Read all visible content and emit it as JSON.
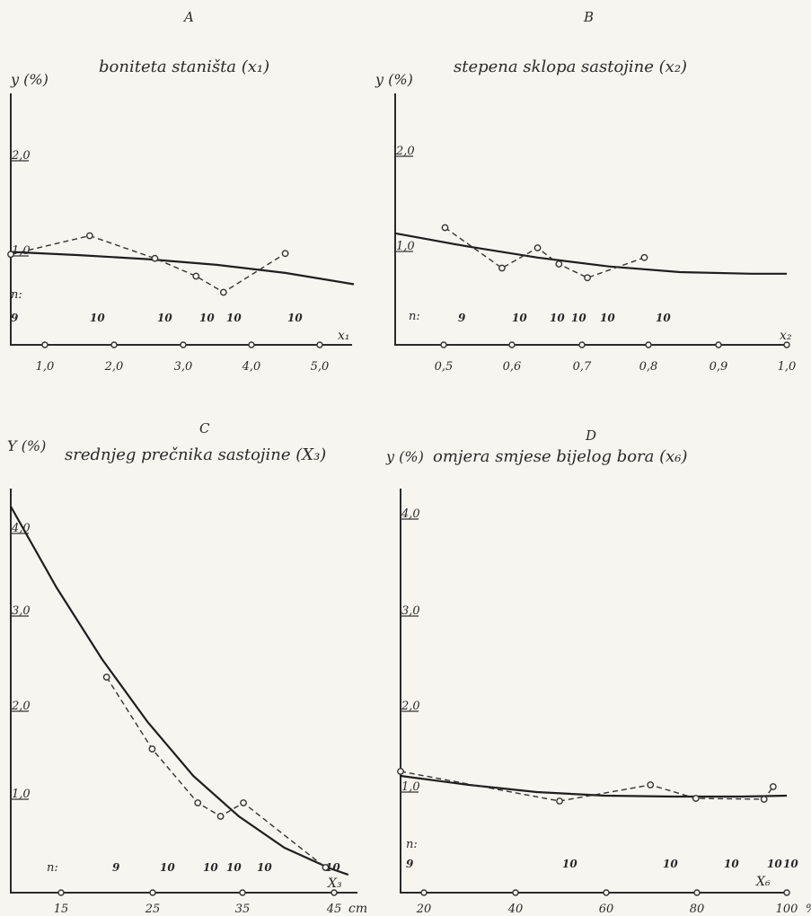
{
  "chart_data": [
    {
      "panel": "A",
      "type": "line",
      "title": "boniteta staništa (x₁)",
      "ylabel": "y (%)",
      "xlabel": "x₁",
      "n_label": "n:",
      "x_ticks": [
        "1,0",
        "2,0",
        "3,0",
        "4,0",
        "5,0"
      ],
      "y_ticks": [
        "1,0",
        "2,0"
      ],
      "xlim": [
        0.5,
        5.5
      ],
      "ylim": [
        0,
        3.0
      ],
      "series": [
        {
          "x": [
            0.5,
            1.5,
            2.5,
            3.5,
            4.5,
            5.5
          ],
          "y": [
            1.15,
            1.11,
            1.06,
            0.99,
            0.89,
            0.75
          ]
        },
        {
          "x": [
            0.5,
            1.65,
            2.6,
            3.2,
            3.6,
            4.5
          ],
          "y": [
            1.12,
            1.35,
            1.07,
            0.85,
            0.65,
            1.13
          ]
        }
      ],
      "n_values": [
        {
          "x": 0.6,
          "text": "9"
        },
        {
          "x": 1.65,
          "text": "10"
        },
        {
          "x": 2.6,
          "text": "10"
        },
        {
          "x": 3.2,
          "text": "10"
        },
        {
          "x": 3.6,
          "text": "10"
        },
        {
          "x": 4.5,
          "text": "10"
        }
      ]
    },
    {
      "panel": "B",
      "type": "line",
      "title": "stepena sklopa sastojine (x₂)",
      "ylabel": "y (%)",
      "xlabel": "x₂",
      "n_label": "n:",
      "x_ticks": [
        "0,5",
        "0,6",
        "0,7",
        "0,8",
        "0,9",
        "1,0"
      ],
      "y_ticks": [
        "1,0",
        "2,0"
      ],
      "xlim": [
        0.45,
        1.0
      ],
      "ylim": [
        0,
        3.0
      ],
      "series": [
        {
          "x": [
            0.45,
            0.55,
            0.65,
            0.75,
            0.85,
            0.95,
            1.0
          ],
          "y": [
            1.38,
            1.22,
            1.08,
            0.97,
            0.9,
            0.88,
            0.88
          ]
        },
        {
          "x": [
            0.52,
            0.6,
            0.65,
            0.68,
            0.72,
            0.8
          ],
          "y": [
            1.45,
            0.95,
            1.2,
            1.0,
            0.83,
            1.08
          ]
        }
      ],
      "n_values": [
        {
          "x": 0.52,
          "text": "9"
        },
        {
          "x": 0.6,
          "text": "10"
        },
        {
          "x": 0.65,
          "text": "10"
        },
        {
          "x": 0.68,
          "text": "10"
        },
        {
          "x": 0.72,
          "text": "10"
        },
        {
          "x": 0.8,
          "text": "10"
        }
      ]
    },
    {
      "panel": "C",
      "type": "line",
      "title": "srednjeg prečnika sastojine (X₃)",
      "ylabel": "Y (%)",
      "xlabel": "X₃",
      "x_unit": "cm",
      "n_label": "n:",
      "x_ticks": [
        "15",
        "25",
        "35",
        "45"
      ],
      "y_ticks": [
        "1,0",
        "2,0",
        "3,0",
        "4,0"
      ],
      "xlim": [
        10,
        48
      ],
      "ylim": [
        0,
        4.4
      ],
      "series": [
        {
          "x": [
            10,
            15,
            20,
            25,
            30,
            35,
            40,
            45,
            47
          ],
          "y": [
            4.3,
            3.4,
            2.6,
            1.9,
            1.3,
            0.85,
            0.5,
            0.27,
            0.2
          ]
        },
        {
          "x": [
            20.5,
            25.5,
            30.5,
            33,
            35.5,
            44.5
          ],
          "y": [
            2.4,
            1.6,
            1.0,
            0.85,
            1.0,
            0.28
          ]
        }
      ],
      "n_values": [
        {
          "x": 20.5,
          "text": "9"
        },
        {
          "x": 25.5,
          "text": "10"
        },
        {
          "x": 30.5,
          "text": "10"
        },
        {
          "x": 33,
          "text": "10"
        },
        {
          "x": 35.5,
          "text": "10"
        },
        {
          "x": 44.5,
          "text": "10"
        }
      ]
    },
    {
      "panel": "D",
      "type": "line",
      "title": "omjera smjese bijelog bora (x₆)",
      "ylabel": "y (%)",
      "xlabel": "X₆",
      "x_unit": "%",
      "n_label": "n:",
      "x_ticks": [
        "20",
        "40",
        "60",
        "80",
        "100"
      ],
      "y_ticks": [
        "1,0",
        "2,0",
        "3,0",
        "4,0"
      ],
      "xlim": [
        15,
        100
      ],
      "ylim": [
        0,
        4.4
      ],
      "series": [
        {
          "x": [
            15,
            30,
            45,
            60,
            75,
            90,
            100
          ],
          "y": [
            1.3,
            1.2,
            1.12,
            1.08,
            1.07,
            1.07,
            1.08
          ]
        },
        {
          "x": [
            15,
            50,
            70,
            80,
            95,
            97
          ],
          "y": [
            1.35,
            1.02,
            1.2,
            1.05,
            1.04,
            1.18
          ]
        }
      ],
      "n_values": [
        {
          "x": 16,
          "text": "9"
        },
        {
          "x": 50,
          "text": "10"
        },
        {
          "x": 72,
          "text": "10"
        },
        {
          "x": 82,
          "text": "10"
        },
        {
          "x": 94,
          "text": "10"
        },
        {
          "x": 99,
          "text": "10"
        }
      ]
    }
  ]
}
